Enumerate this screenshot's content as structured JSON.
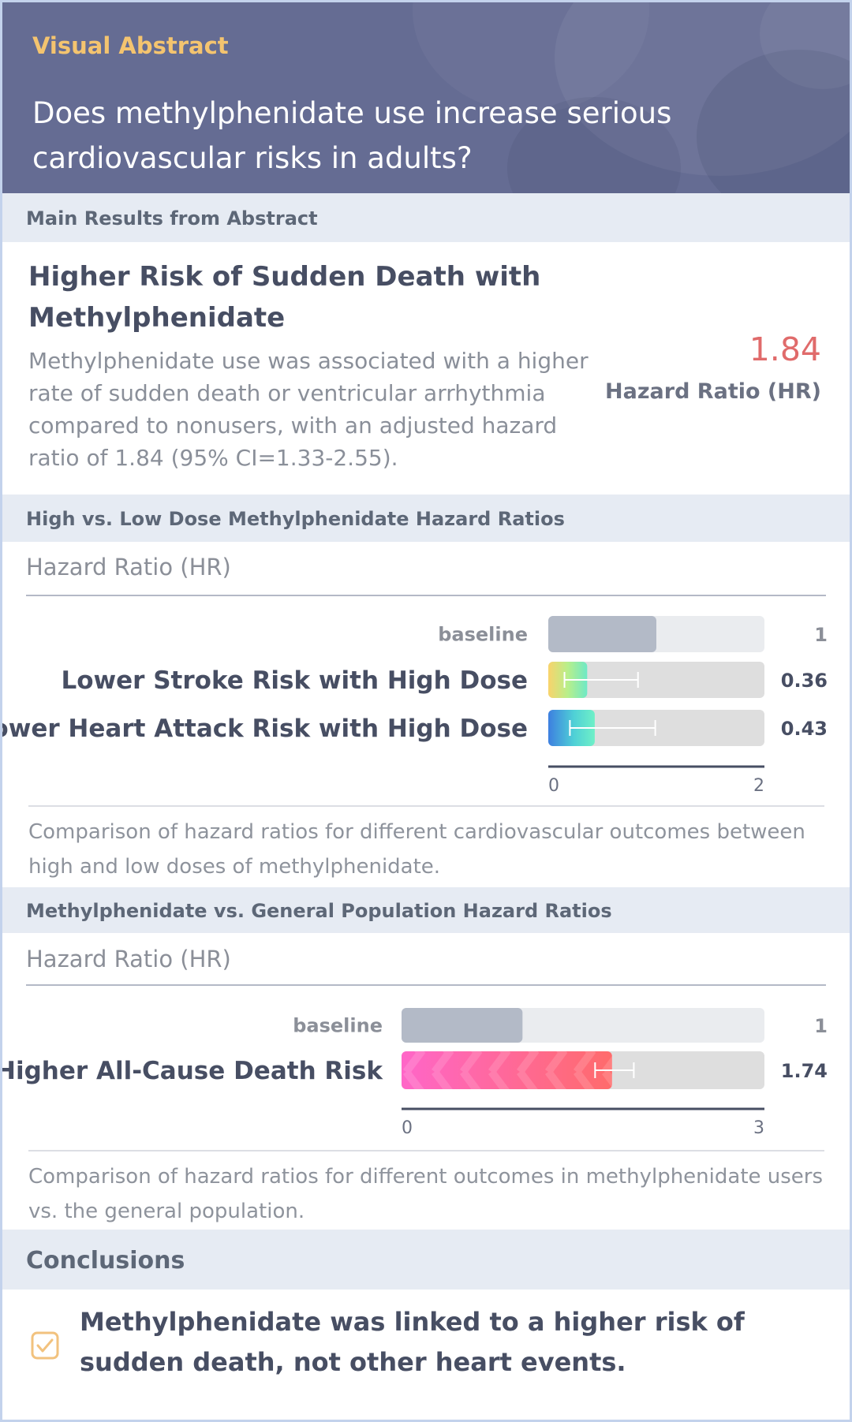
{
  "header": {
    "eyebrow": "Visual Abstract",
    "question": "Does methylphenidate use increase serious cardiovascular risks in adults?"
  },
  "sections": {
    "main_results": "Main Results from Abstract",
    "dose_chart": "High vs. Low Dose Methylphenidate Hazard Ratios",
    "population_chart": "Methylphenidate vs. General Population Hazard Ratios",
    "conclusions": "Conclusions"
  },
  "main_result": {
    "title": "Higher Risk of Sudden Death with Methylphenidate",
    "description": "Methylphenidate use was associated with a higher rate of sudden death or ventricular arrhythmia compared to nonusers, with an adjusted hazard ratio of 1.84 (95% CI=1.33-2.55).",
    "value": "1.84",
    "value_label": "Hazard Ratio (HR)"
  },
  "captions": {
    "dose_chart": "Comparison of hazard ratios for different cardiovascular outcomes between high and low doses of methylphenidate.",
    "population_chart": "Comparison of hazard ratios for different outcomes in methylphenidate users vs. the general population."
  },
  "conclusion": {
    "text": "Methylphenidate was linked to a higher risk of sudden death, not other heart events.",
    "icon": "checkbox-icon"
  },
  "colors": {
    "header_bg": "#656c93",
    "eyebrow": "#f4c46f",
    "highlight_value": "#e06b6b",
    "baseline_bar": "#b3bac7",
    "track": "#dedede",
    "section_bg": "#e6ebf3"
  },
  "chart_data": [
    {
      "type": "bar",
      "orientation": "horizontal",
      "title": "High vs. Low Dose Methylphenidate Hazard Ratios",
      "xlabel": "Hazard Ratio (HR)",
      "xlim": [
        0,
        2
      ],
      "ticks": [
        "0",
        "2"
      ],
      "categories": [
        "baseline",
        "Lower Stroke Risk with High Dose",
        "Lower Heart Attack Risk with High Dose"
      ],
      "values": [
        1,
        0.36,
        0.43
      ],
      "value_labels": [
        "1",
        "0.36",
        "0.43"
      ],
      "ci": [
        null,
        [
          0.15,
          0.83
        ],
        [
          0.2,
          0.99
        ]
      ]
    },
    {
      "type": "bar",
      "orientation": "horizontal",
      "title": "Methylphenidate vs. General Population Hazard Ratios",
      "xlabel": "Hazard Ratio (HR)",
      "xlim": [
        0,
        3
      ],
      "ticks": [
        "0",
        "3"
      ],
      "categories": [
        "baseline",
        "Higher All-Cause Death Risk"
      ],
      "values": [
        1,
        1.74
      ],
      "value_labels": [
        "1",
        "1.74"
      ],
      "ci": [
        null,
        [
          1.6,
          1.92
        ]
      ]
    }
  ]
}
